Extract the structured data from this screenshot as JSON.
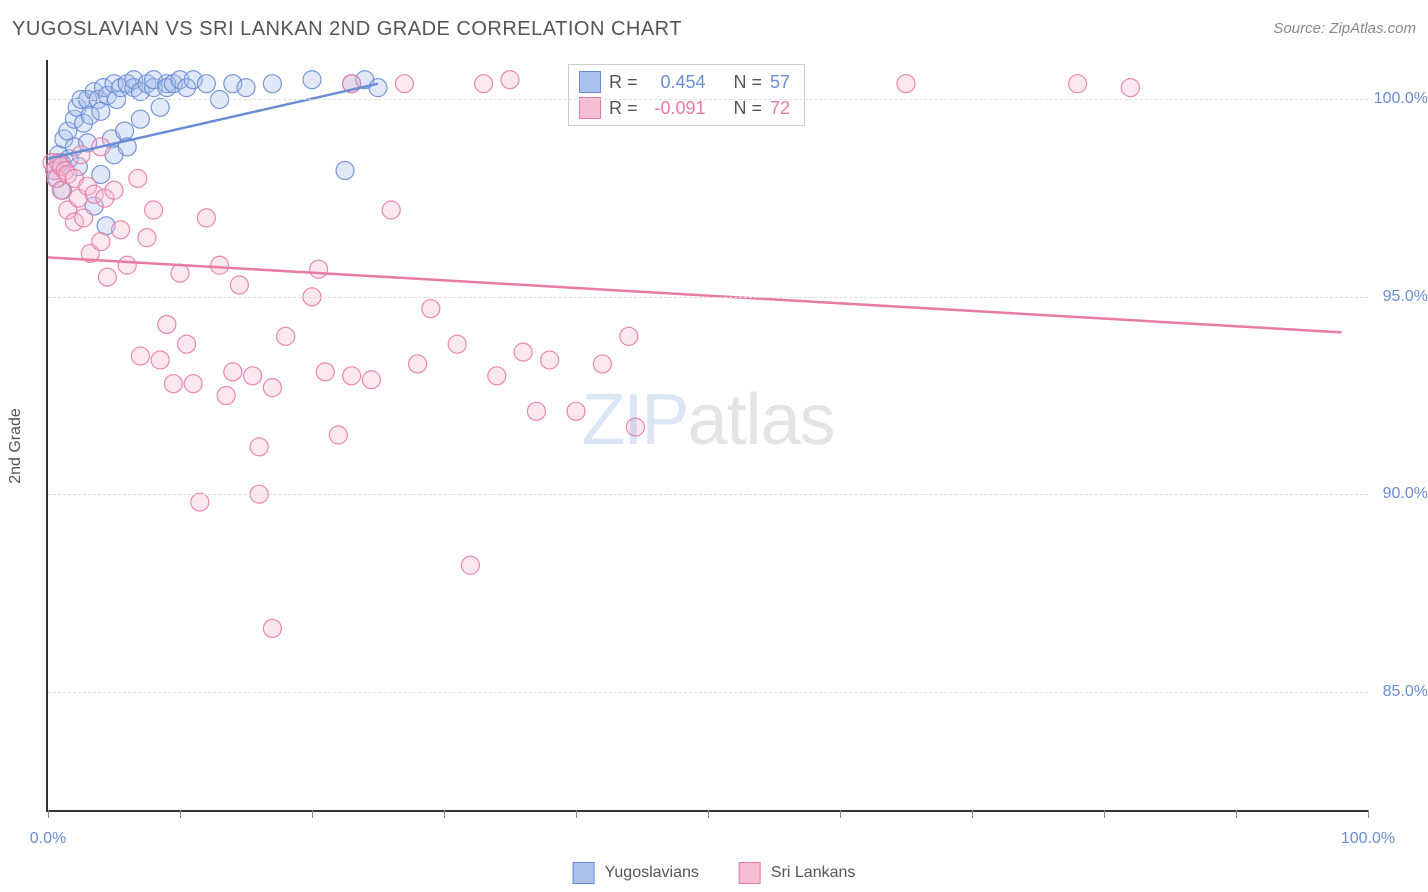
{
  "header": {
    "title": "YUGOSLAVIAN VS SRI LANKAN 2ND GRADE CORRELATION CHART",
    "source_prefix": "Source: ",
    "source_name": "ZipAtlas.com"
  },
  "axes": {
    "ylabel": "2nd Grade",
    "xlim": [
      0,
      100
    ],
    "ylim": [
      82,
      101
    ],
    "xtick_positions": [
      0,
      10,
      20,
      30,
      40,
      50,
      60,
      70,
      80,
      90,
      100
    ],
    "xtick_labels": {
      "0": "0.0%",
      "100": "100.0%"
    },
    "ytick_positions": [
      85,
      90,
      95,
      100
    ],
    "ytick_labels": {
      "85": "85.0%",
      "90": "90.0%",
      "95": "95.0%",
      "100": "100.0%"
    }
  },
  "chart": {
    "type": "scatter",
    "background_color": "#ffffff",
    "grid_color": "#dddddd",
    "marker_radius": 9,
    "marker_fill_opacity": 0.35,
    "marker_stroke_opacity": 0.9,
    "marker_stroke_width": 1.2,
    "trend_line_width": 2.5
  },
  "series": [
    {
      "id": "yugoslavians",
      "label": "Yugoslavians",
      "color": "#6a8cd4",
      "fill": "#aac1ea",
      "R": 0.454,
      "N": 57,
      "trend": {
        "x1": 0,
        "y1": 98.5,
        "x2": 25,
        "y2": 100.4
      },
      "points": [
        [
          0.5,
          98.2
        ],
        [
          0.7,
          98.0
        ],
        [
          0.8,
          98.6
        ],
        [
          1.0,
          98.4
        ],
        [
          1.2,
          99.0
        ],
        [
          1.1,
          97.7
        ],
        [
          1.5,
          99.2
        ],
        [
          1.6,
          98.5
        ],
        [
          2.0,
          99.5
        ],
        [
          2.0,
          98.8
        ],
        [
          2.2,
          99.8
        ],
        [
          2.3,
          98.3
        ],
        [
          2.5,
          100.0
        ],
        [
          2.7,
          99.4
        ],
        [
          3.0,
          100.0
        ],
        [
          3.0,
          98.9
        ],
        [
          3.2,
          99.6
        ],
        [
          3.5,
          100.2
        ],
        [
          3.5,
          97.3
        ],
        [
          3.8,
          100.0
        ],
        [
          4.0,
          99.7
        ],
        [
          4.0,
          98.1
        ],
        [
          4.2,
          100.3
        ],
        [
          4.4,
          96.8
        ],
        [
          4.5,
          100.1
        ],
        [
          4.8,
          99.0
        ],
        [
          5.0,
          100.4
        ],
        [
          5.0,
          98.6
        ],
        [
          5.2,
          100.0
        ],
        [
          5.5,
          100.3
        ],
        [
          5.8,
          99.2
        ],
        [
          6.0,
          100.4
        ],
        [
          6.0,
          98.8
        ],
        [
          6.5,
          100.3
        ],
        [
          6.5,
          100.5
        ],
        [
          7.0,
          100.2
        ],
        [
          7.0,
          99.5
        ],
        [
          7.5,
          100.4
        ],
        [
          8.0,
          100.3
        ],
        [
          8.0,
          100.5
        ],
        [
          8.5,
          99.8
        ],
        [
          9.0,
          100.4
        ],
        [
          9.0,
          100.3
        ],
        [
          9.5,
          100.4
        ],
        [
          10.0,
          100.5
        ],
        [
          10.5,
          100.3
        ],
        [
          11.0,
          100.5
        ],
        [
          12.0,
          100.4
        ],
        [
          13.0,
          100.0
        ],
        [
          14.0,
          100.4
        ],
        [
          15.0,
          100.3
        ],
        [
          17.0,
          100.4
        ],
        [
          20.0,
          100.5
        ],
        [
          22.5,
          98.2
        ],
        [
          23.0,
          100.4
        ],
        [
          24.0,
          100.5
        ],
        [
          25.0,
          100.3
        ]
      ]
    },
    {
      "id": "sri_lankans",
      "label": "Sri Lankans",
      "color": "#e87ba4",
      "fill": "#f4bdd1",
      "R": -0.091,
      "N": 72,
      "trend": {
        "x1": 0,
        "y1": 96.0,
        "x2": 98,
        "y2": 94.1
      },
      "points": [
        [
          0.3,
          98.4
        ],
        [
          0.5,
          98.2
        ],
        [
          0.6,
          98.0
        ],
        [
          0.8,
          98.4
        ],
        [
          1.0,
          98.3
        ],
        [
          1.0,
          97.7
        ],
        [
          1.3,
          98.2
        ],
        [
          1.5,
          98.1
        ],
        [
          1.5,
          97.2
        ],
        [
          2.0,
          98.0
        ],
        [
          2.0,
          96.9
        ],
        [
          2.3,
          97.5
        ],
        [
          2.5,
          98.6
        ],
        [
          2.7,
          97.0
        ],
        [
          3.0,
          97.8
        ],
        [
          3.2,
          96.1
        ],
        [
          3.5,
          97.6
        ],
        [
          4.0,
          98.8
        ],
        [
          4.0,
          96.4
        ],
        [
          4.3,
          97.5
        ],
        [
          4.5,
          95.5
        ],
        [
          5.0,
          97.7
        ],
        [
          5.5,
          96.7
        ],
        [
          6.0,
          95.8
        ],
        [
          6.8,
          98.0
        ],
        [
          7.0,
          93.5
        ],
        [
          7.5,
          96.5
        ],
        [
          8.0,
          97.2
        ],
        [
          8.5,
          93.4
        ],
        [
          9.0,
          94.3
        ],
        [
          9.5,
          92.8
        ],
        [
          10.0,
          95.6
        ],
        [
          10.5,
          93.8
        ],
        [
          11.0,
          92.8
        ],
        [
          11.5,
          89.8
        ],
        [
          12.0,
          97.0
        ],
        [
          13.0,
          95.8
        ],
        [
          13.5,
          92.5
        ],
        [
          14.0,
          93.1
        ],
        [
          14.5,
          95.3
        ],
        [
          15.5,
          93.0
        ],
        [
          16.0,
          91.2
        ],
        [
          16.0,
          90.0
        ],
        [
          17.0,
          92.7
        ],
        [
          17.0,
          86.6
        ],
        [
          18.0,
          94.0
        ],
        [
          20.0,
          95.0
        ],
        [
          20.5,
          95.7
        ],
        [
          21.0,
          93.1
        ],
        [
          22.0,
          91.5
        ],
        [
          23.0,
          93.0
        ],
        [
          23.0,
          100.4
        ],
        [
          24.5,
          92.9
        ],
        [
          26.0,
          97.2
        ],
        [
          27.0,
          100.4
        ],
        [
          28.0,
          93.3
        ],
        [
          29.0,
          94.7
        ],
        [
          31.0,
          93.8
        ],
        [
          32.0,
          88.2
        ],
        [
          33.0,
          100.4
        ],
        [
          34.0,
          93.0
        ],
        [
          35.0,
          100.5
        ],
        [
          36.0,
          93.6
        ],
        [
          37.0,
          92.1
        ],
        [
          38.0,
          93.4
        ],
        [
          40.0,
          92.1
        ],
        [
          42.0,
          93.3
        ],
        [
          44.0,
          94.0
        ],
        [
          44.5,
          91.7
        ],
        [
          65.0,
          100.4
        ],
        [
          78.0,
          100.4
        ],
        [
          82.0,
          100.3
        ]
      ]
    }
  ],
  "stats_box": {
    "R_label": "R",
    "N_label": "N",
    "eq": "="
  },
  "legend": {
    "items": [
      {
        "ref": 0
      },
      {
        "ref": 1
      }
    ]
  },
  "watermark": {
    "part1": "ZIP",
    "part2": "atlas"
  }
}
